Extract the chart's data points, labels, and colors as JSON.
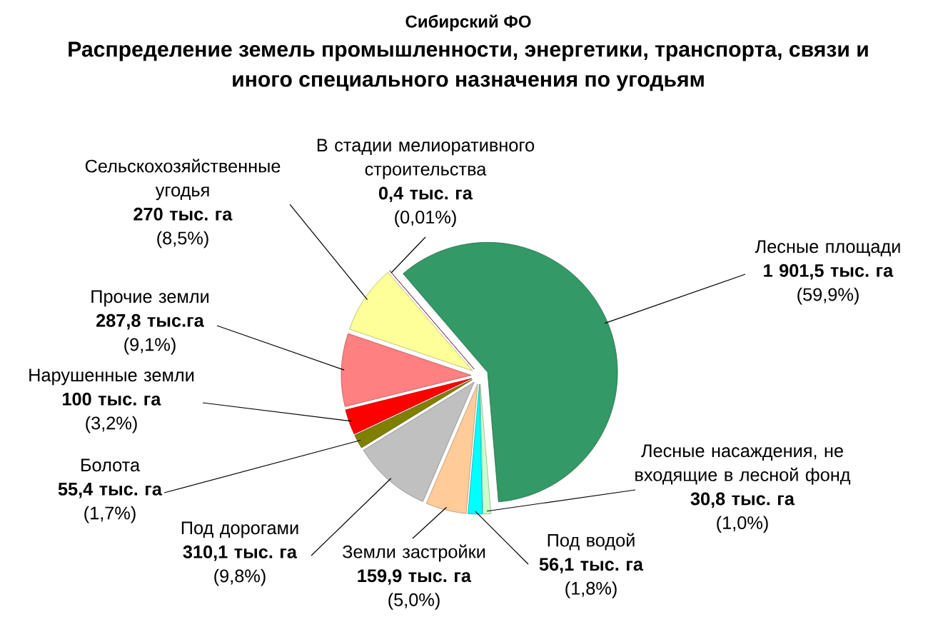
{
  "chart_data": {
    "type": "pie",
    "subtitle": "Сибирский ФО",
    "title": "Распределение земель промышленности, энергетики, транспорта, связи и иного специального назначения по угодьям",
    "categories": [
      "Лесные площади",
      "Лесные насаждения, не входящие в лесной фонд",
      "Под водой",
      "Земли застройки",
      "Под дорогами",
      "Болота",
      "Нарушенные земли",
      "Прочие земли",
      "Сельскохозяйственные угодья",
      "В стадии мелиоративного строительства"
    ],
    "values": [
      1901.5,
      30.8,
      56.1,
      159.9,
      310.1,
      55.4,
      100,
      287.8,
      270,
      0.4
    ],
    "colors": [
      "#339966",
      "#ccffcc",
      "#00ffff",
      "#ffcc99",
      "#c0c0c0",
      "#808000",
      "#ff0000",
      "#ff8080",
      "#ffff99",
      "#993366"
    ],
    "value_labels": [
      "**1 901,5 тыс. га**\n(59,9%)",
      "**30,8 тыс. га**\n(1,0%)",
      "**56,1 тыс. га**\n(1,8%)",
      "**159,9 тыс. га**\n(5,0%)",
      "**310,1 тыс. га**\n(9,8%)",
      "**55,4 тыс. га**\n(1,7%)",
      "**100 тыс. га**\n(3,2%)",
      "**287,8 тыс.га**\n(9,1%)",
      "**270 тыс. га**\n(8,5%)",
      "**0,4 тыс. га**\n(0,01%)"
    ]
  }
}
